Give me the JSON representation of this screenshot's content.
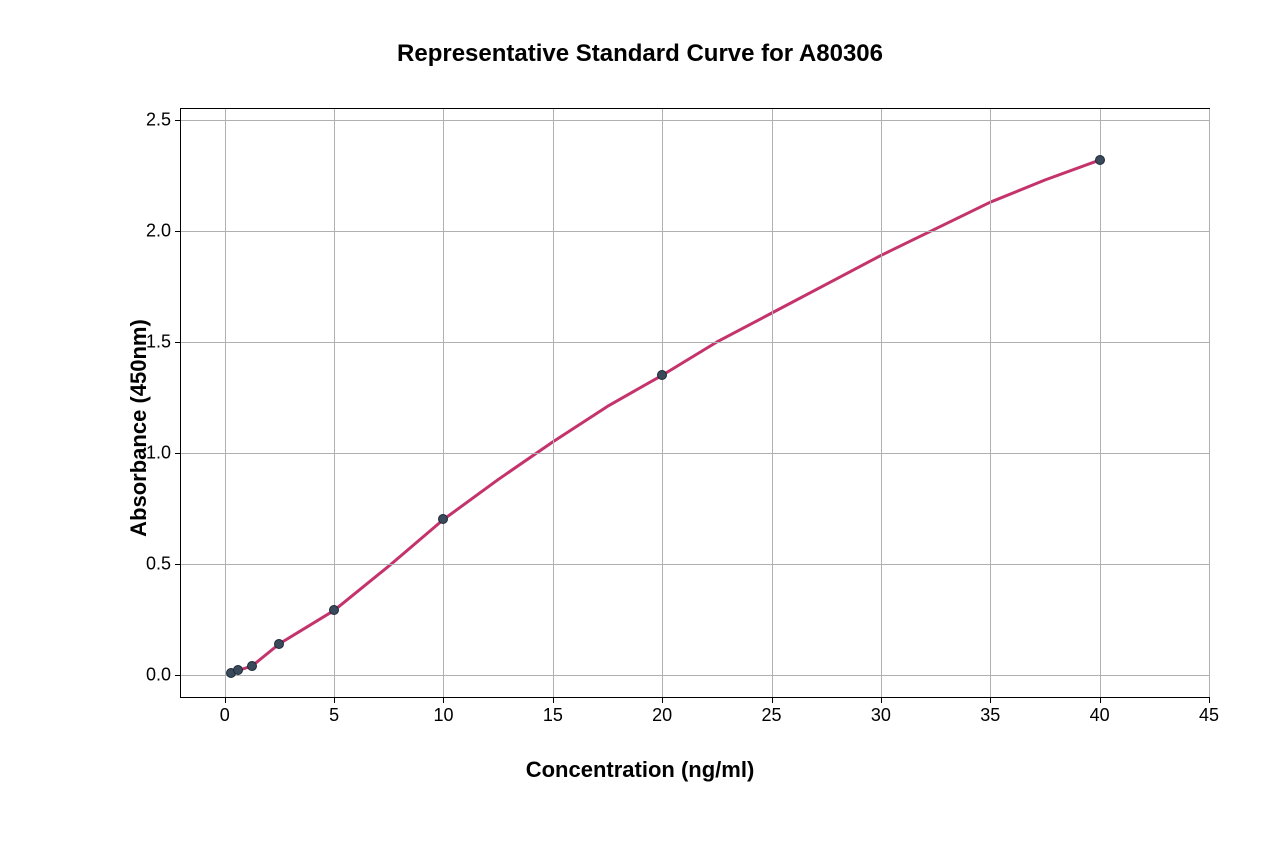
{
  "chart": {
    "type": "line-scatter",
    "title": "Representative Standard Curve for A80306",
    "title_fontsize": 24,
    "title_fontweight": "bold",
    "xlabel": "Concentration (ng/ml)",
    "ylabel": "Absorbance (450nm)",
    "label_fontsize": 22,
    "label_fontweight": "bold",
    "tick_fontsize": 18,
    "background_color": "#ffffff",
    "plot_background": "#ffffff",
    "border_color": "#000000",
    "grid_color": "#b0b0b0",
    "grid_on": true,
    "xlim": [
      -2,
      45
    ],
    "ylim": [
      -0.1,
      2.55
    ],
    "xticks": [
      0,
      5,
      10,
      15,
      20,
      25,
      30,
      35,
      40,
      45
    ],
    "yticks": [
      0.0,
      0.5,
      1.0,
      1.5,
      2.0,
      2.5
    ],
    "ytick_labels": [
      "0.0",
      "0.5",
      "1.0",
      "1.5",
      "2.0",
      "2.5"
    ],
    "line_color": "#c4336b",
    "line_width": 3,
    "marker_color": "#3a4a5a",
    "marker_border": "#1a2a3a",
    "marker_size": 10,
    "data_points": [
      {
        "x": 0.3,
        "y": 0.01
      },
      {
        "x": 0.625,
        "y": 0.02
      },
      {
        "x": 1.25,
        "y": 0.04
      },
      {
        "x": 2.5,
        "y": 0.14
      },
      {
        "x": 5,
        "y": 0.29
      },
      {
        "x": 10,
        "y": 0.7
      },
      {
        "x": 20,
        "y": 1.35
      },
      {
        "x": 40,
        "y": 2.32
      }
    ],
    "curve_points": [
      {
        "x": 0.3,
        "y": 0.01
      },
      {
        "x": 0.625,
        "y": 0.02
      },
      {
        "x": 1.25,
        "y": 0.04
      },
      {
        "x": 2.5,
        "y": 0.14
      },
      {
        "x": 5,
        "y": 0.29
      },
      {
        "x": 7.5,
        "y": 0.49
      },
      {
        "x": 10,
        "y": 0.7
      },
      {
        "x": 12.5,
        "y": 0.88
      },
      {
        "x": 15,
        "y": 1.05
      },
      {
        "x": 17.5,
        "y": 1.21
      },
      {
        "x": 20,
        "y": 1.35
      },
      {
        "x": 22.5,
        "y": 1.5
      },
      {
        "x": 25,
        "y": 1.63
      },
      {
        "x": 27.5,
        "y": 1.76
      },
      {
        "x": 30,
        "y": 1.89
      },
      {
        "x": 32.5,
        "y": 2.01
      },
      {
        "x": 35,
        "y": 2.13
      },
      {
        "x": 37.5,
        "y": 2.23
      },
      {
        "x": 40,
        "y": 2.32
      }
    ]
  }
}
